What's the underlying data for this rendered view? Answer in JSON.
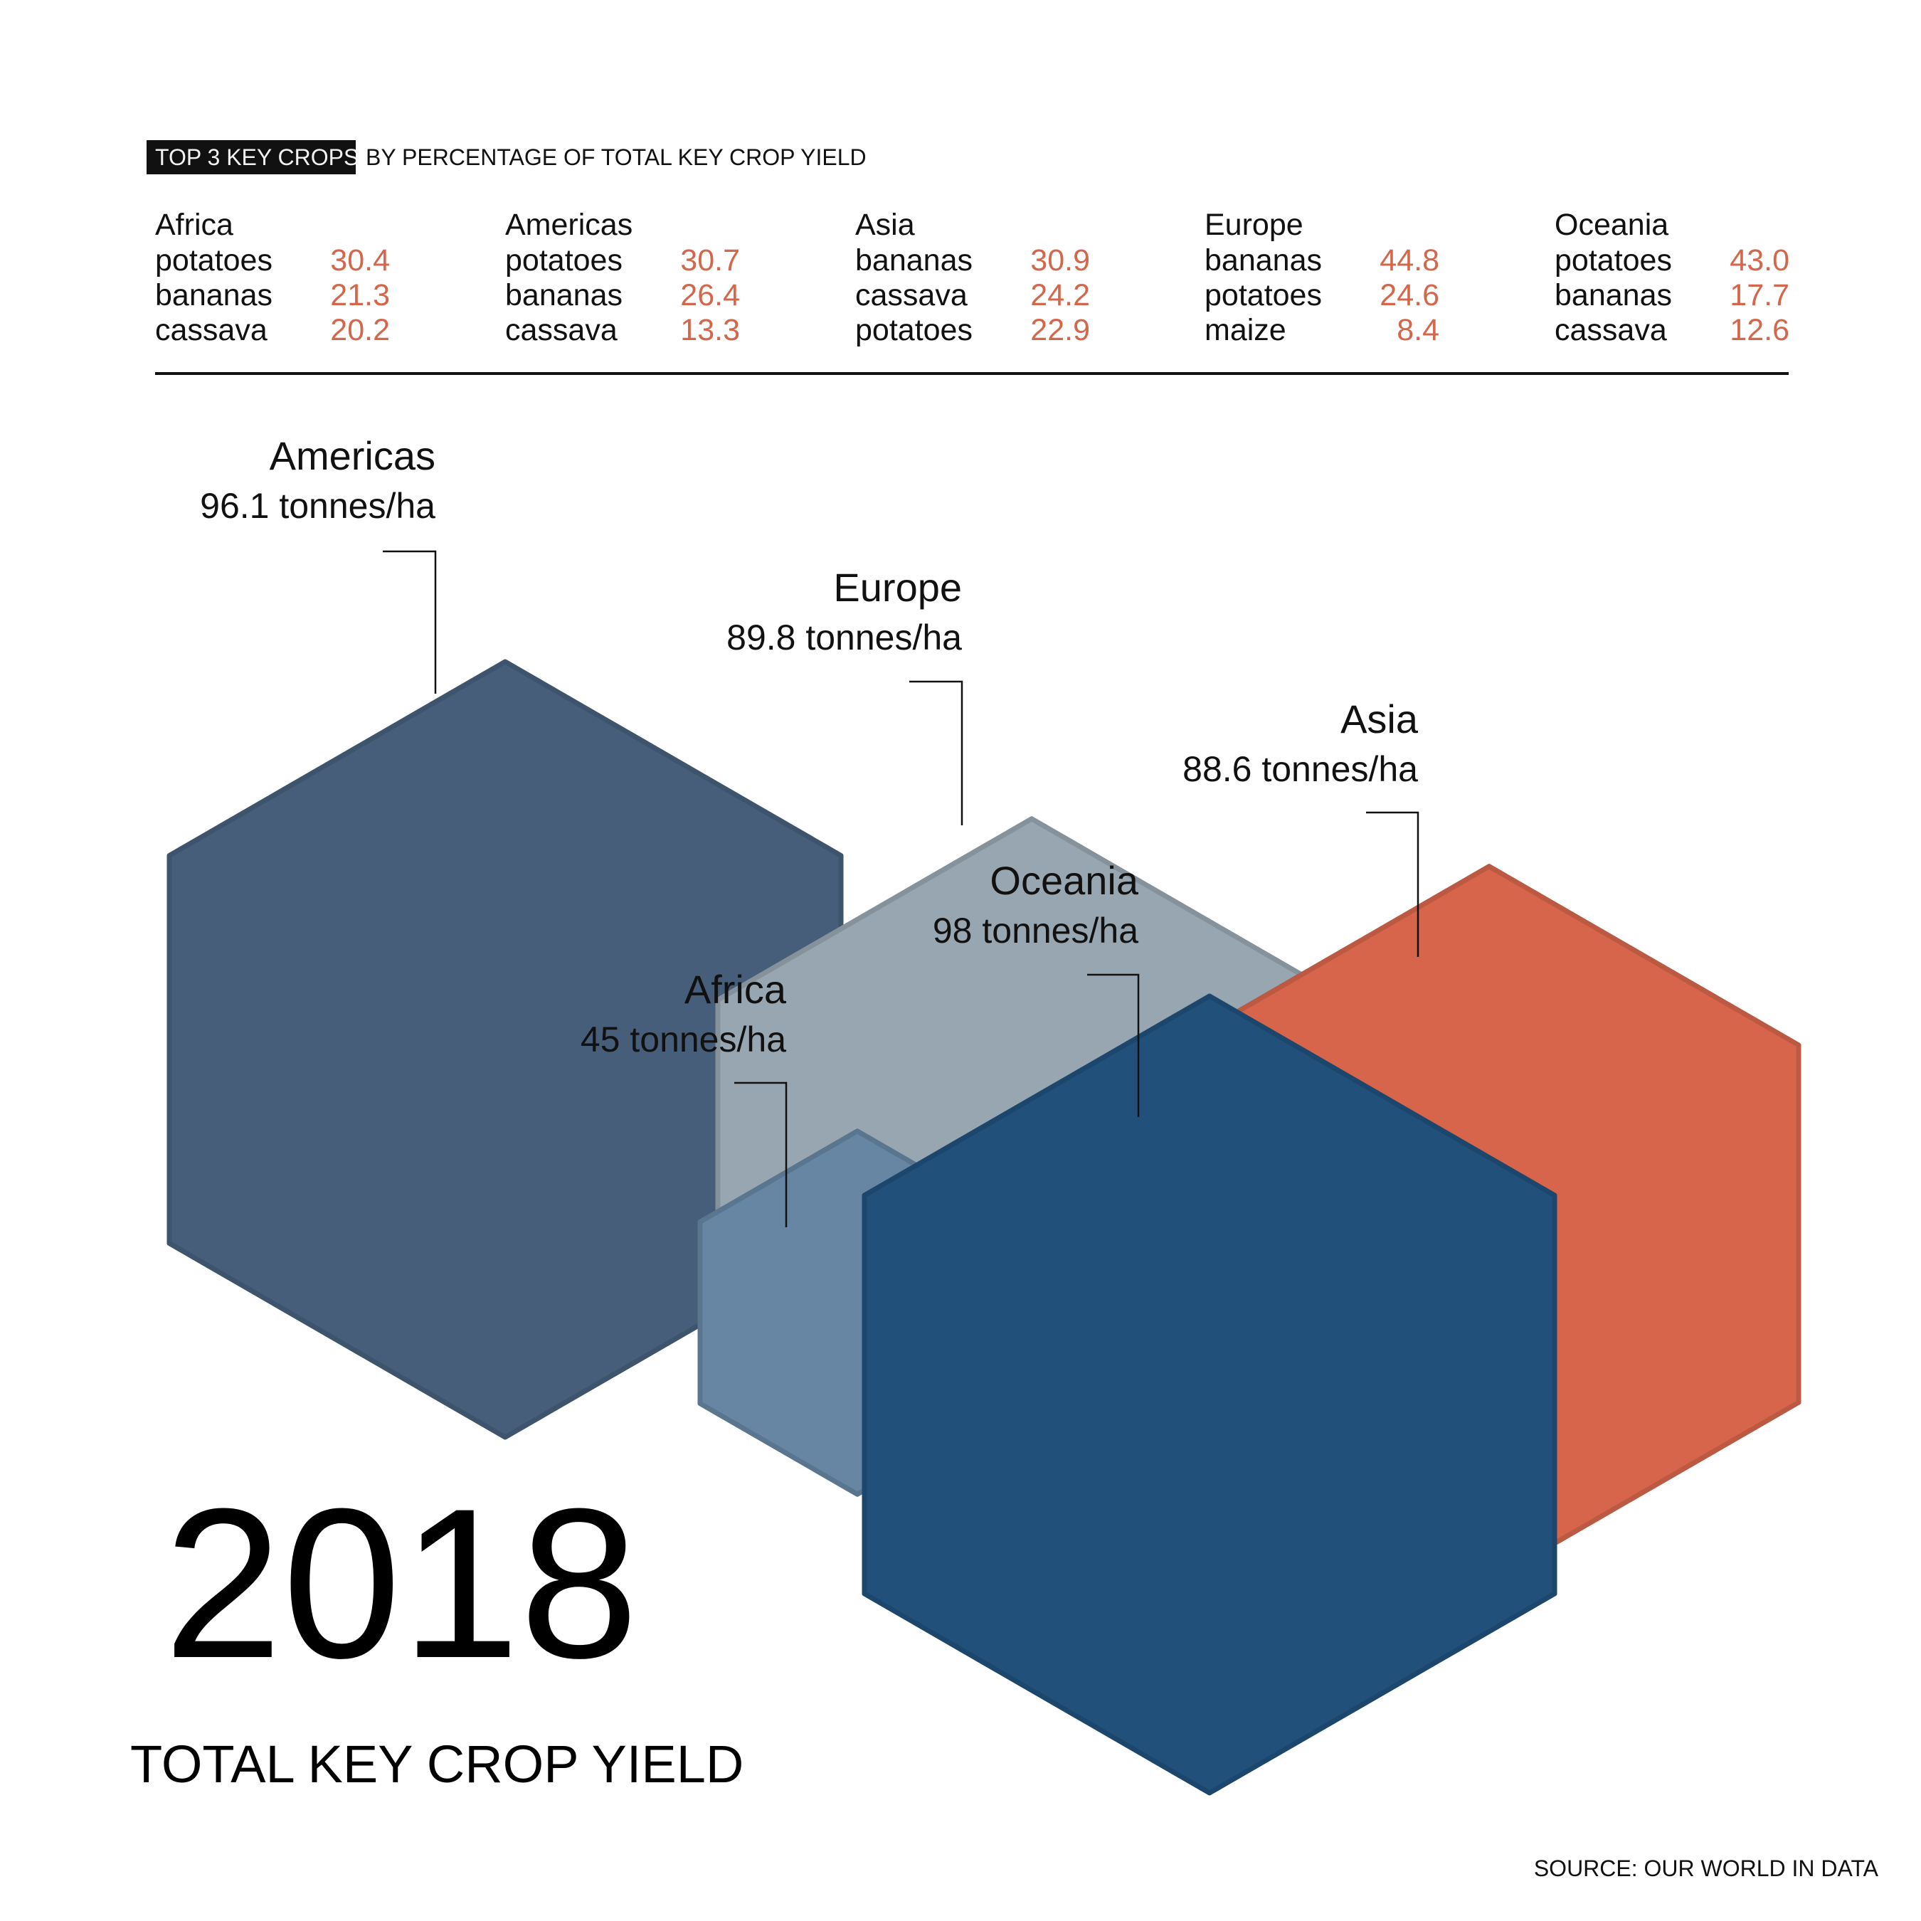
{
  "header": {
    "tag": "TOP 3 KEY CROPS",
    "title": "BY PERCENTAGE OF TOTAL KEY CROP YIELD"
  },
  "regions": [
    {
      "name": "Africa",
      "crops": [
        {
          "crop": "potatoes",
          "value": "30.4"
        },
        {
          "crop": "bananas",
          "value": "21.3"
        },
        {
          "crop": "cassava",
          "value": "20.2"
        }
      ]
    },
    {
      "name": "Americas",
      "crops": [
        {
          "crop": "potatoes",
          "value": "30.7"
        },
        {
          "crop": "bananas",
          "value": "26.4"
        },
        {
          "crop": "cassava",
          "value": "13.3"
        }
      ]
    },
    {
      "name": "Asia",
      "crops": [
        {
          "crop": "bananas",
          "value": "30.9"
        },
        {
          "crop": "cassava",
          "value": "24.2"
        },
        {
          "crop": "potatoes",
          "value": "22.9"
        }
      ]
    },
    {
      "name": "Europe",
      "crops": [
        {
          "crop": "bananas",
          "value": "44.8"
        },
        {
          "crop": "potatoes",
          "value": "24.6"
        },
        {
          "crop": "maize",
          "value": "8.4"
        }
      ]
    },
    {
      "name": "Oceania",
      "crops": [
        {
          "crop": "potatoes",
          "value": "43.0"
        },
        {
          "crop": "bananas",
          "value": "17.7"
        },
        {
          "crop": "cassava",
          "value": "12.6"
        }
      ]
    }
  ],
  "chart_data": {
    "type": "hexagon-bubble",
    "unit": "tonnes/ha",
    "series": [
      {
        "name": "Americas",
        "value": 96.1,
        "label": "96.1 tonnes/ha",
        "color": "#475e7b"
      },
      {
        "name": "Europe",
        "value": 89.8,
        "label": "89.8 tonnes/ha",
        "color": "#97a6b0"
      },
      {
        "name": "Asia",
        "value": 88.6,
        "label": "88.6 tonnes/ha",
        "color": "#d6654b"
      },
      {
        "name": "Africa",
        "value": 45,
        "label": "45 tonnes/ha",
        "color": "#6686a3"
      },
      {
        "name": "Oceania",
        "value": 98,
        "label": "98 tonnes/ha",
        "color": "#21507b"
      }
    ]
  },
  "footer": {
    "year": "2018",
    "subtitle": "TOTAL KEY CROP YIELD",
    "source": "SOURCE: OUR WORLD IN DATA"
  }
}
